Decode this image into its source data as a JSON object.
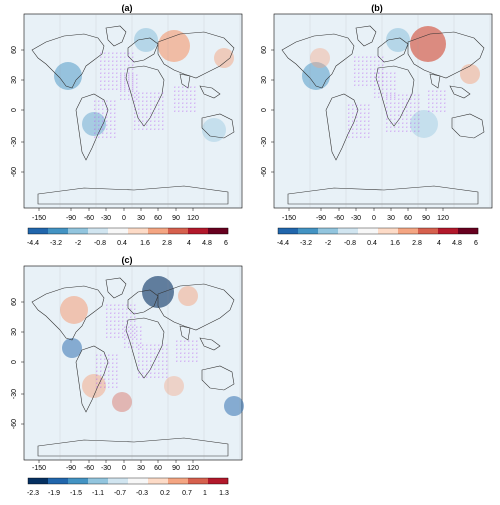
{
  "panels": [
    {
      "id": "a",
      "title": "(a)",
      "y_ticks": [
        "60",
        "30",
        "0",
        "-30",
        "-60"
      ],
      "x_ticks": [
        "-150",
        "-90",
        "-60",
        "-30",
        "0",
        "30",
        "60",
        "90",
        "120"
      ],
      "colorbar": {
        "ticks": [
          "-4.4",
          "-3.2",
          "-2",
          "-0.8",
          "0.4",
          "1.6",
          "2.8",
          "4",
          "4.8",
          "6"
        ],
        "colors": [
          "#2166ac",
          "#4393c3",
          "#92c5de",
          "#d1e5f0",
          "#f7f7f7",
          "#fddbc7",
          "#f4a582",
          "#d6604d",
          "#b2182b",
          "#67001f"
        ]
      }
    },
    {
      "id": "b",
      "title": "(b)",
      "y_ticks": [
        "60",
        "30",
        "0",
        "-30",
        "-60"
      ],
      "x_ticks": [
        "-150",
        "-90",
        "-60",
        "-30",
        "0",
        "30",
        "60",
        "90",
        "120"
      ],
      "colorbar": {
        "ticks": [
          "-4.4",
          "-3.2",
          "-2",
          "-0.8",
          "0.4",
          "1.6",
          "2.8",
          "4",
          "4.8",
          "6"
        ],
        "colors": [
          "#2166ac",
          "#4393c3",
          "#92c5de",
          "#d1e5f0",
          "#f7f7f7",
          "#fddbc7",
          "#f4a582",
          "#d6604d",
          "#b2182b",
          "#67001f"
        ]
      }
    },
    {
      "id": "c",
      "title": "(c)",
      "y_ticks": [
        "60",
        "30",
        "0",
        "-30",
        "-60"
      ],
      "x_ticks": [
        "-150",
        "-90",
        "-60",
        "-30",
        "0",
        "30",
        "60",
        "90",
        "120"
      ],
      "colorbar": {
        "ticks": [
          "-2.3",
          "-1.9",
          "-1.5",
          "-1.1",
          "-0.7",
          "-0.3",
          "0.2",
          "0.7",
          "1",
          "1.3"
        ],
        "colors": [
          "#053061",
          "#2166ac",
          "#4393c3",
          "#92c5de",
          "#d1e5f0",
          "#f7f7f7",
          "#fddbc7",
          "#f4a582",
          "#d6604d",
          "#b2182b"
        ]
      }
    }
  ],
  "colors": {
    "ocean": "#e8f1f7",
    "coast": "#333333",
    "hatch": "#b455f0"
  }
}
